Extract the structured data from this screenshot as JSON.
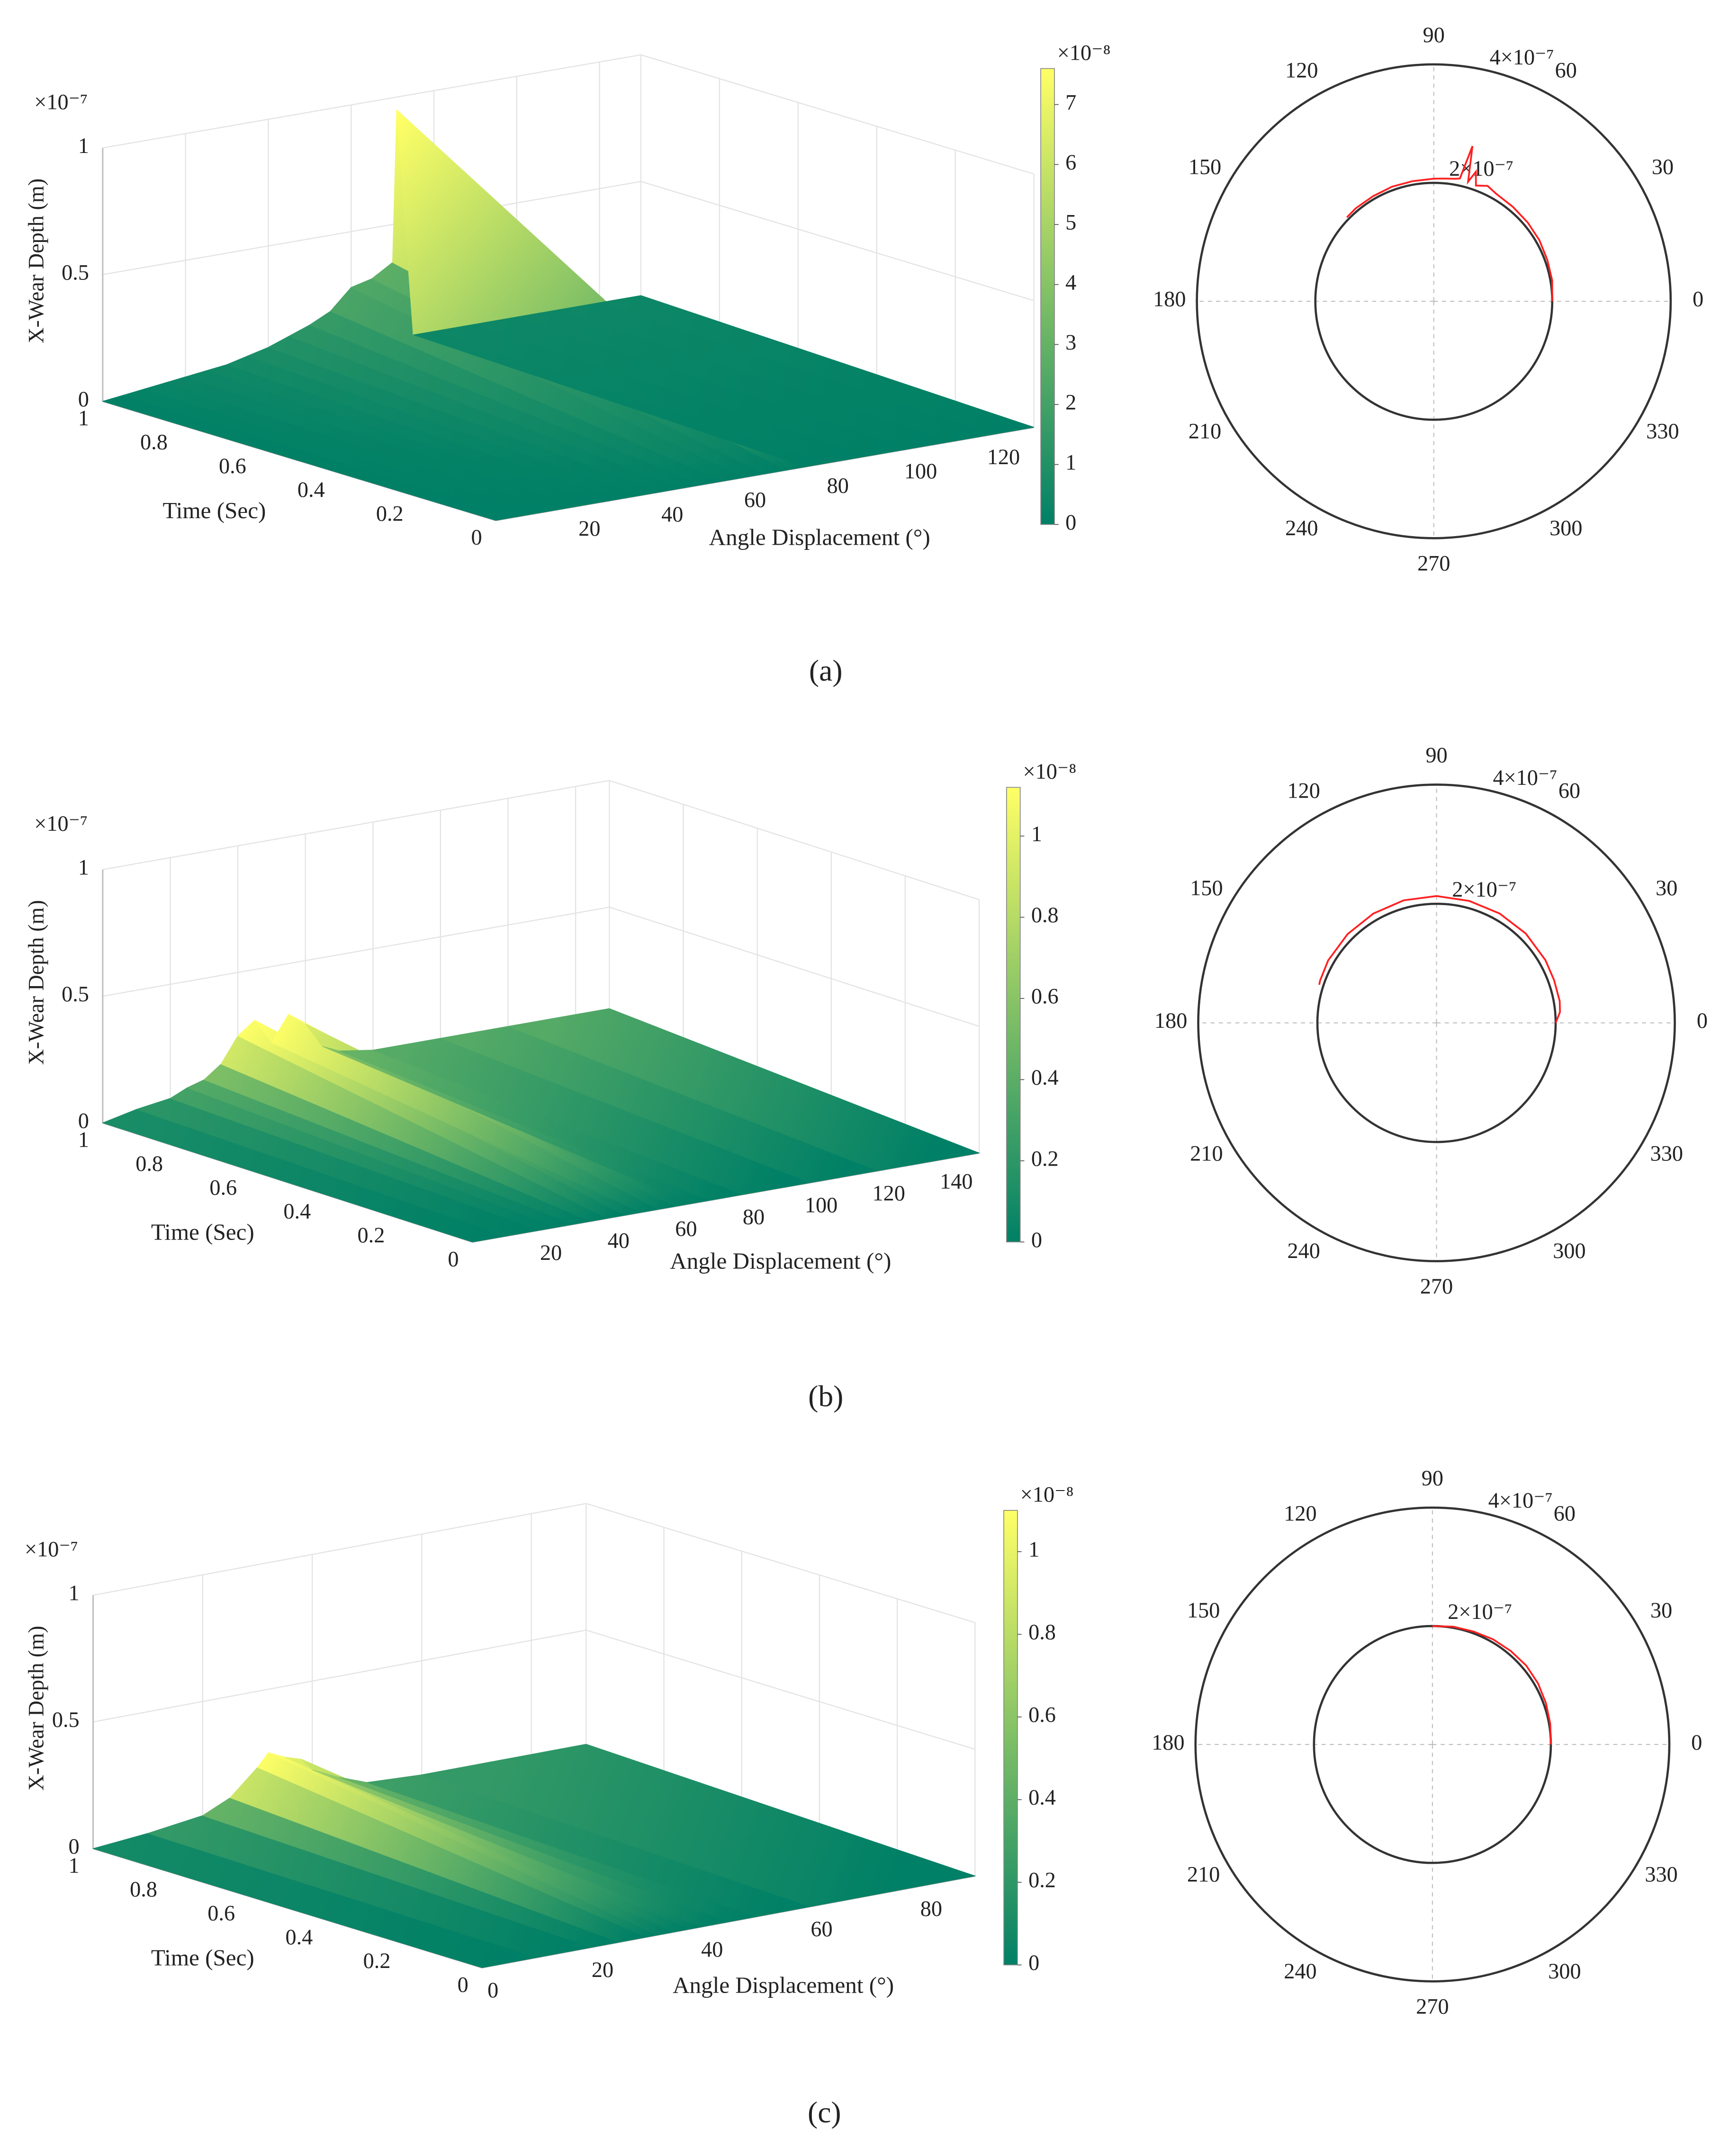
{
  "panel_labels": [
    "(a)",
    "(b)",
    "(c)"
  ],
  "chart_data": [
    {
      "type": "surface",
      "zlabel": "X-Wear Depth (m)",
      "xlabel": "Angle Displacement (°)",
      "ylabel": "Time (Sec)",
      "z_multiplier": "×10⁻⁷",
      "x": [
        0,
        5,
        10,
        15,
        20,
        25,
        30,
        35,
        40,
        45,
        50,
        55,
        60,
        65,
        70,
        71,
        75,
        80,
        90,
        100,
        110,
        120,
        130
      ],
      "values": [
        0,
        0.01,
        0.02,
        0.03,
        0.04,
        0.05,
        0.06,
        0.08,
        0.1,
        0.13,
        0.16,
        0.2,
        0.28,
        0.3,
        0.35,
        0.95,
        0.05,
        0.05,
        0.05,
        0.05,
        0.05,
        0.05,
        0.05
      ],
      "xlim": [
        0,
        130
      ],
      "xticks": [
        20,
        40,
        60,
        80,
        100,
        120
      ],
      "ylim": [
        0,
        1
      ],
      "yticks": [
        0,
        0.2,
        0.4,
        0.6,
        0.8,
        1
      ],
      "zlim": [
        0,
        1
      ],
      "zticks": [
        0,
        0.5,
        1
      ],
      "grid": true,
      "colormap": [
        "#008066",
        "#ffff66"
      ],
      "colorbar": {
        "lim": [
          0,
          7.6
        ],
        "ticks": [
          0,
          1,
          2,
          3,
          4,
          5,
          6,
          7
        ],
        "multiplier": "×10⁻⁸"
      }
    },
    {
      "type": "polar",
      "color": "#ff2020",
      "theta": [
        0,
        10,
        20,
        30,
        40,
        50,
        60,
        65,
        70,
        72,
        74,
        76,
        78,
        80,
        85,
        90,
        100,
        110,
        120,
        130,
        136
      ],
      "values": [
        2e-07,
        2.03e-07,
        2.04e-07,
        2.06e-07,
        2.07e-07,
        2.08e-07,
        2.1e-07,
        2.15e-07,
        2.08e-07,
        2.3e-07,
        2.1e-07,
        2.7e-07,
        2.12e-07,
        2.1e-07,
        2.08e-07,
        2.07e-07,
        2.06e-07,
        2.06e-07,
        2.05e-07,
        2.05e-07,
        2.04e-07
      ],
      "rlim": [
        0,
        4e-07
      ],
      "rticks": [
        {
          "value": 2e-07,
          "label": "2×10⁻⁷"
        },
        {
          "value": 4e-07,
          "label": "4×10⁻⁷"
        }
      ],
      "thetaticks": [
        0,
        30,
        60,
        90,
        120,
        150,
        180,
        210,
        240,
        270,
        300,
        330
      ]
    },
    {
      "type": "surface",
      "zlabel": "X-Wear Depth (m)",
      "xlabel": "Angle Displacement (°)",
      "ylabel": "Time (Sec)",
      "z_multiplier": "×10⁻⁷",
      "x": [
        0,
        10,
        20,
        25,
        30,
        35,
        40,
        45,
        50,
        55,
        60,
        65,
        70,
        80,
        100,
        120,
        150
      ],
      "values": [
        0,
        0.03,
        0.05,
        0.08,
        0.1,
        0.15,
        0.25,
        0.3,
        0.2,
        0.3,
        0.25,
        0.15,
        0.12,
        0.1,
        0.1,
        0.1,
        0.1
      ],
      "xlim": [
        0,
        150
      ],
      "xticks": [
        20,
        40,
        60,
        80,
        100,
        120,
        140
      ],
      "ylim": [
        0,
        1
      ],
      "yticks": [
        0,
        0.2,
        0.4,
        0.6,
        0.8,
        1
      ],
      "zlim": [
        0,
        1
      ],
      "zticks": [
        0,
        0.5,
        1
      ],
      "grid": true,
      "colormap": [
        "#008066",
        "#ffff66"
      ],
      "colorbar": {
        "lim": [
          0,
          1.12
        ],
        "ticks": [
          0,
          0.2,
          0.4,
          0.6,
          0.8,
          1
        ],
        "multiplier": "×10⁻⁸"
      }
    },
    {
      "type": "polar",
      "color": "#ff2020",
      "theta": [
        0,
        5,
        10,
        20,
        30,
        45,
        60,
        75,
        90,
        105,
        120,
        135,
        150,
        160,
        162
      ],
      "values": [
        2e-07,
        2.08e-07,
        2.1e-07,
        2.1e-07,
        2.11e-07,
        2.12e-07,
        2.12e-07,
        2.12e-07,
        2.13e-07,
        2.13e-07,
        2.12e-07,
        2.11e-07,
        2.1e-07,
        2.08e-07,
        2.07e-07
      ],
      "rlim": [
        0,
        4e-07
      ],
      "rticks": [
        {
          "value": 2e-07,
          "label": "2×10⁻⁷"
        },
        {
          "value": 4e-07,
          "label": "4×10⁻⁷"
        }
      ],
      "thetaticks": [
        0,
        30,
        60,
        90,
        120,
        150,
        180,
        210,
        240,
        270,
        300,
        330
      ]
    },
    {
      "type": "surface",
      "zlabel": "X-Wear Depth (m)",
      "xlabel": "Angle Displacement (°)",
      "ylabel": "Time (Sec)",
      "z_multiplier": "×10⁻⁷",
      "x": [
        0,
        10,
        20,
        25,
        30,
        32,
        35,
        38,
        40,
        45,
        50,
        60,
        90
      ],
      "values": [
        0,
        0.02,
        0.05,
        0.1,
        0.2,
        0.25,
        0.22,
        0.2,
        0.15,
        0.1,
        0.06,
        0.05,
        0.05
      ],
      "xlim": [
        0,
        90
      ],
      "xticks": [
        0,
        20,
        40,
        60,
        80
      ],
      "ylim": [
        0,
        1
      ],
      "yticks": [
        0,
        0.2,
        0.4,
        0.6,
        0.8,
        1
      ],
      "zlim": [
        0,
        1
      ],
      "zticks": [
        0,
        0.5,
        1
      ],
      "grid": true,
      "colormap": [
        "#008066",
        "#ffff66"
      ],
      "colorbar": {
        "lim": [
          0,
          1.1
        ],
        "ticks": [
          0,
          0.2,
          0.4,
          0.6,
          0.8,
          1
        ],
        "multiplier": "×10⁻⁸"
      }
    },
    {
      "type": "polar",
      "color": "#ff2020",
      "theta": [
        0,
        10,
        20,
        30,
        40,
        50,
        60,
        70,
        80,
        90
      ],
      "values": [
        2e-07,
        2.02e-07,
        2.04e-07,
        2.06e-07,
        2.07e-07,
        2.06e-07,
        2.05e-07,
        2.03e-07,
        2.02e-07,
        2e-07
      ],
      "rlim": [
        0,
        4e-07
      ],
      "rticks": [
        {
          "value": 2e-07,
          "label": "2×10⁻⁷"
        },
        {
          "value": 4e-07,
          "label": "4×10⁻⁷"
        }
      ],
      "thetaticks": [
        0,
        30,
        60,
        90,
        120,
        150,
        180,
        210,
        240,
        270,
        300,
        330
      ]
    }
  ]
}
